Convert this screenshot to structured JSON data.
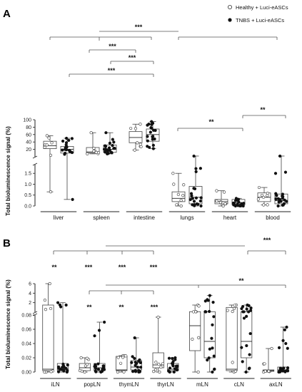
{
  "legend": [
    {
      "label": "Healthy + Luci-eASCs",
      "marker": "open-circle"
    },
    {
      "label": "TNBS + Luci-eASCs",
      "marker": "filled-circle"
    }
  ],
  "chart_data": [
    {
      "panel": "A",
      "type": "scatter",
      "ylabel": "Total bioluminescence signal (%)",
      "y_axis_broken": true,
      "y_ticks_upper": [
        20,
        40,
        60,
        80,
        100
      ],
      "y_ticks_lower": [
        0.0,
        0.5,
        1.0,
        1.5
      ],
      "categories": [
        "liver",
        "spleen",
        "intestine",
        "lungs",
        "heart",
        "blood"
      ],
      "series": [
        {
          "name": "Healthy + Luci-eASCs",
          "boxes": [
            {
              "min": 0.65,
              "q1": 22,
              "median": 30,
              "q3": 42,
              "max": 57
            },
            {
              "min": 8,
              "q1": 10,
              "median": 13,
              "q3": 25,
              "max": 65
            },
            {
              "min": 18,
              "q1": 38,
              "median": 52,
              "q3": 68,
              "max": 88
            },
            {
              "min": 0.0,
              "q1": 0.2,
              "median": 0.35,
              "q3": 0.65,
              "max": 1.5
            },
            {
              "min": 0.0,
              "q1": 0.1,
              "median": 0.2,
              "q3": 0.3,
              "max": 0.7
            },
            {
              "min": 0.05,
              "q1": 0.2,
              "median": 0.4,
              "q3": 0.6,
              "max": 0.85
            }
          ]
        },
        {
          "name": "TNBS + Luci-eASCs",
          "boxes": [
            {
              "min": 0.3,
              "q1": 10,
              "median": 20,
              "q3": 28,
              "max": 50
            },
            {
              "min": 8,
              "q1": 12,
              "median": 20,
              "q3": 32,
              "max": 65
            },
            {
              "min": 22,
              "q1": 42,
              "median": 60,
              "q3": 75,
              "max": 95
            },
            {
              "min": 0.0,
              "q1": 0.1,
              "median": 0.4,
              "q3": 0.9,
              "max": 2.0
            },
            {
              "min": 0.0,
              "q1": 0.05,
              "median": 0.15,
              "q3": 0.3,
              "max": 0.35
            },
            {
              "min": 0.0,
              "q1": 0.1,
              "median": 0.25,
              "q3": 0.55,
              "max": 2.0
            }
          ]
        }
      ],
      "significance": [
        {
          "groups": [
            "liver",
            "spleen",
            "intestine"
          ],
          "vs": [
            "lungs",
            "heart",
            "blood"
          ],
          "label": "***"
        },
        {
          "groups": [
            "spleen",
            "intestine"
          ],
          "label": "***"
        },
        {
          "groups": [
            "spleen",
            "intestine"
          ],
          "label": "***"
        },
        {
          "groups": [
            "liver",
            "intestine"
          ],
          "label": "***"
        },
        {
          "groups": [
            "lungs",
            "heart"
          ],
          "label": "**"
        },
        {
          "groups": [
            "heart",
            "blood"
          ],
          "label": "**"
        }
      ]
    },
    {
      "panel": "B",
      "type": "scatter",
      "ylabel": "Total bioluminescence signal (%)",
      "y_axis_broken": true,
      "y_ticks_upper": [
        2,
        4,
        6
      ],
      "y_ticks_lower": [
        0.0,
        0.02,
        0.04,
        0.06,
        0.08
      ],
      "categories": [
        "iLN",
        "popLN",
        "thymLN",
        "thyrLN",
        "mLN",
        "cLN",
        "axLN"
      ],
      "series": [
        {
          "name": "Healthy + Luci-eASCs",
          "boxes": [
            {
              "min": 0.0,
              "q1": 0.002,
              "median": 0.004,
              "q3": 1.5,
              "max": 6.0
            },
            {
              "min": 0.0,
              "q1": 0.002,
              "median": 0.006,
              "q3": 0.012,
              "max": 0.02
            },
            {
              "min": 0.0,
              "q1": 0.002,
              "median": 0.003,
              "q3": 0.022,
              "max": 0.023
            },
            {
              "min": 0.0,
              "q1": 0.006,
              "median": 0.01,
              "q3": 0.027,
              "max": 0.077
            },
            {
              "min": 0.0,
              "q1": 0.03,
              "median": 0.065,
              "q3": 0.1,
              "max": 1.5
            },
            {
              "min": 0.0,
              "q1": 0.002,
              "median": 0.004,
              "q3": 1.0,
              "max": 1.5
            },
            {
              "min": 0.0,
              "q1": 0.001,
              "median": 0.002,
              "q3": 0.003,
              "max": 0.033
            }
          ]
        },
        {
          "name": "TNBS + Luci-eASCs",
          "boxes": [
            {
              "min": 0.0,
              "q1": 0.002,
              "median": 0.004,
              "q3": 0.012,
              "max": 2.0
            },
            {
              "min": 0.0,
              "q1": 0.002,
              "median": 0.006,
              "q3": 0.012,
              "max": 0.07
            },
            {
              "min": 0.0,
              "q1": 0.003,
              "median": 0.007,
              "q3": 0.016,
              "max": 0.048
            },
            {
              "min": 0.0,
              "q1": 0.002,
              "median": 0.004,
              "q3": 0.012,
              "max": 0.02
            },
            {
              "min": 0.0,
              "q1": 0.02,
              "median": 0.043,
              "q3": 0.1,
              "max": 3.5
            },
            {
              "min": 0.0,
              "q1": 0.02,
              "median": 0.043,
              "q3": 0.09,
              "max": 1.5
            },
            {
              "min": 0.0,
              "q1": 0.002,
              "median": 0.003,
              "q3": 0.007,
              "max": 0.063
            }
          ]
        }
      ],
      "significance": [
        {
          "groups": [
            "iLN",
            "popLN",
            "thymLN",
            "thyrLN"
          ],
          "vs": [
            "mLN",
            "cLN",
            "axLN"
          ],
          "label": "***"
        },
        {
          "groups": [
            "iLN"
          ],
          "label": "**"
        },
        {
          "groups": [
            "popLN"
          ],
          "label": "***"
        },
        {
          "groups": [
            "thymLN"
          ],
          "label": "***"
        },
        {
          "groups": [
            "thyrLN"
          ],
          "label": "***"
        },
        {
          "groups": [
            "popLN",
            "thymLN",
            "thyrLN"
          ],
          "vs": [
            "mLN"
          ],
          "label": "**"
        },
        {
          "groups": [
            "popLN"
          ],
          "label": "**"
        },
        {
          "groups": [
            "thymLN"
          ],
          "label": "**"
        },
        {
          "groups": [
            "thyrLN"
          ],
          "label": "***"
        },
        {
          "groups": [
            "mLN",
            "axLN"
          ],
          "label": "**"
        }
      ]
    }
  ]
}
